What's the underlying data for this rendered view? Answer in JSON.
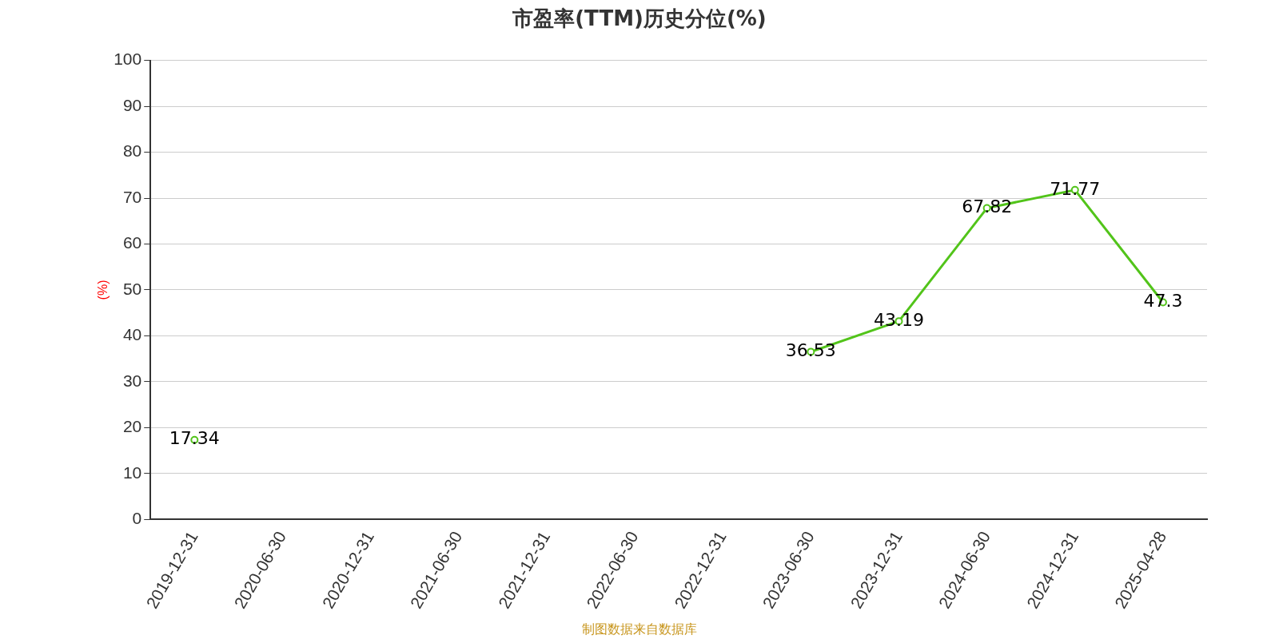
{
  "chart_data": {
    "type": "line",
    "title": "市盈率(TTM)历史分位(%)",
    "ylabel": "(%)",
    "categories": [
      "2019-12-31",
      "2020-06-30",
      "2020-12-31",
      "2021-06-30",
      "2021-12-31",
      "2022-06-30",
      "2022-12-31",
      "2023-06-30",
      "2023-12-31",
      "2024-06-30",
      "2024-12-31",
      "2025-04-28"
    ],
    "series": [
      {
        "color": "#52c41a",
        "values": [
          17.34,
          null,
          null,
          null,
          null,
          null,
          null,
          36.53,
          43.19,
          67.82,
          71.77,
          47.3
        ]
      }
    ],
    "ylim": [
      0,
      100
    ],
    "yticks": [
      0,
      10,
      20,
      30,
      40,
      50,
      60,
      70,
      80,
      90,
      100
    ],
    "grid": "y",
    "legend": false,
    "marker": "circle",
    "line_style": "solid",
    "data_labels": true,
    "annotations": [
      "制图数据来自数据库"
    ]
  }
}
